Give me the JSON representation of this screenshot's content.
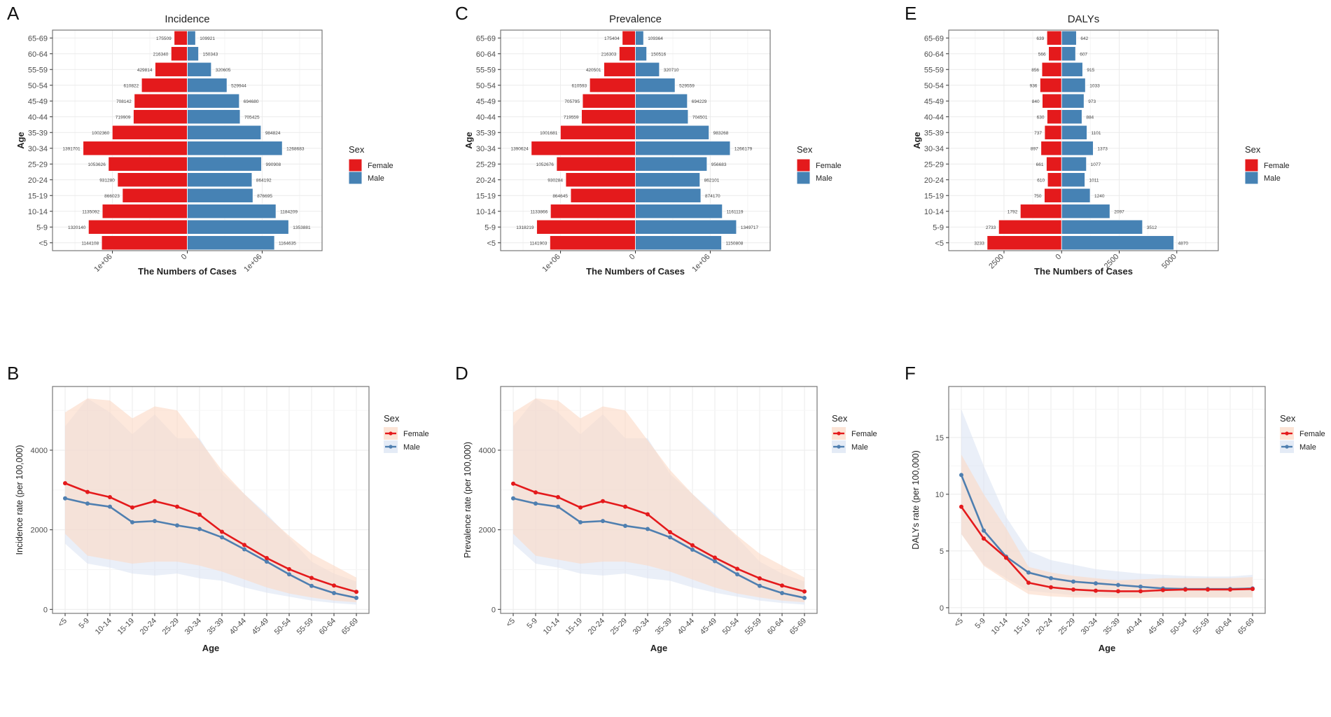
{
  "chart_data": [
    {
      "id": "A",
      "panel_letter": "A",
      "type": "bar",
      "orientation": "horizontal-pyramid",
      "title": "Incidence",
      "xlabel": "The Numbers of Cases",
      "ylabel": "Age",
      "categories": [
        "<5",
        "5-9",
        "10-14",
        "15-19",
        "20-24",
        "25-29",
        "30-34",
        "35-39",
        "40-44",
        "45-49",
        "50-54",
        "55-59",
        "60-64",
        "65-69"
      ],
      "series": [
        {
          "name": "Female",
          "color": "#E41A1C",
          "values": [
            1144108,
            1320140,
            1135092,
            866023,
            931280,
            1053626,
            1391701,
            1002360,
            719909,
            708142,
            610822,
            429814,
            216340,
            175509
          ]
        },
        {
          "name": "Male",
          "color": "#4682B4",
          "values": [
            1164635,
            1353881,
            1184209,
            876695,
            864192,
            990908,
            1268683,
            984824,
            705425,
            694680,
            529944,
            320605,
            150343,
            109921
          ]
        }
      ],
      "x_ticks": [
        {
          "value": -1000000,
          "label": "1e+06"
        },
        {
          "value": 0,
          "label": "0"
        },
        {
          "value": 1000000,
          "label": "1e+06"
        }
      ],
      "xlim": [
        -1800000,
        1800000
      ],
      "grid": true,
      "legend": {
        "title": "Sex",
        "position": "right",
        "entries": [
          "Female",
          "Male"
        ]
      }
    },
    {
      "id": "C",
      "panel_letter": "C",
      "type": "bar",
      "orientation": "horizontal-pyramid",
      "title": "Prevalence",
      "xlabel": "The Numbers of Cases",
      "ylabel": "Age",
      "categories": [
        "<5",
        "5-9",
        "10-14",
        "15-19",
        "20-24",
        "25-29",
        "30-34",
        "35-39",
        "40-44",
        "45-49",
        "50-54",
        "55-59",
        "60-64",
        "65-69"
      ],
      "series": [
        {
          "name": "Female",
          "color": "#E41A1C",
          "values": [
            1141903,
            1318219,
            1133866,
            864645,
            930284,
            1052676,
            1390624,
            1001681,
            719559,
            705795,
            610593,
            420501,
            216303,
            175404
          ]
        },
        {
          "name": "Male",
          "color": "#4682B4",
          "values": [
            1150808,
            1349717,
            1161119,
            874170,
            862101,
            956683,
            1266179,
            983268,
            704501,
            694229,
            529559,
            320710,
            150516,
            109364
          ]
        }
      ],
      "x_ticks": [
        {
          "value": -1000000,
          "label": "1e+06"
        },
        {
          "value": 0,
          "label": "0"
        },
        {
          "value": 1000000,
          "label": "1e+06"
        }
      ],
      "xlim": [
        -1800000,
        1800000
      ],
      "grid": true,
      "legend": {
        "title": "Sex",
        "position": "right",
        "entries": [
          "Female",
          "Male"
        ]
      }
    },
    {
      "id": "E",
      "panel_letter": "E",
      "type": "bar",
      "orientation": "horizontal-pyramid",
      "title": "DALYs",
      "xlabel": "The Numbers of Cases",
      "ylabel": "Age",
      "categories": [
        "<5",
        "5-9",
        "10-14",
        "15-19",
        "20-24",
        "25-29",
        "30-34",
        "35-39",
        "40-44",
        "45-49",
        "50-54",
        "55-59",
        "60-64",
        "65-69"
      ],
      "series": [
        {
          "name": "Female",
          "color": "#E41A1C",
          "values": [
            3233,
            2733,
            1792,
            750,
            610,
            661,
            897,
            737,
            630,
            840,
            936,
            856,
            566,
            639
          ]
        },
        {
          "name": "Male",
          "color": "#4682B4",
          "values": [
            4870,
            3512,
            2097,
            1240,
            1011,
            1077,
            1373,
            1101,
            884,
            973,
            1033,
            915,
            607,
            642
          ]
        }
      ],
      "x_ticks": [
        {
          "value": -2500,
          "label": "2500"
        },
        {
          "value": 0,
          "label": "0"
        },
        {
          "value": 2500,
          "label": "2500"
        },
        {
          "value": 5000,
          "label": "5000"
        }
      ],
      "xlim": [
        -4900,
        6800
      ],
      "grid": true,
      "legend": {
        "title": "Sex",
        "position": "right",
        "entries": [
          "Female",
          "Male"
        ]
      }
    },
    {
      "id": "B",
      "panel_letter": "B",
      "type": "line",
      "title": "",
      "xlabel": "Age",
      "ylabel": "Incidence rate (per 100,000)",
      "categories": [
        "<5",
        "5-9",
        "10-14",
        "15-19",
        "20-24",
        "25-29",
        "30-34",
        "35-39",
        "40-44",
        "45-49",
        "50-54",
        "55-59",
        "60-64",
        "65-69"
      ],
      "series": [
        {
          "name": "Female",
          "color": "#E41A1C",
          "band_color": "#FBD9C4",
          "values": [
            3170,
            2950,
            2820,
            2560,
            2720,
            2580,
            2380,
            1950,
            1620,
            1290,
            1010,
            790,
            600,
            440
          ],
          "upper": [
            4950,
            5300,
            5250,
            4800,
            5100,
            5000,
            4250,
            3500,
            2900,
            2350,
            1850,
            1400,
            1100,
            800
          ],
          "lower": [
            1900,
            1350,
            1250,
            1150,
            1200,
            1200,
            1100,
            950,
            750,
            550,
            400,
            300,
            220,
            180
          ]
        },
        {
          "name": "Male",
          "color": "#4F7FB0",
          "band_color": "#D8E2F2",
          "values": [
            2790,
            2660,
            2580,
            2190,
            2220,
            2110,
            2020,
            1810,
            1510,
            1200,
            880,
            590,
            410,
            290
          ],
          "upper": [
            4600,
            5300,
            4950,
            4400,
            4900,
            4300,
            4300,
            3400,
            2900,
            2400,
            1800,
            1200,
            900,
            700
          ],
          "lower": [
            1650,
            1150,
            1050,
            900,
            850,
            900,
            780,
            720,
            550,
            420,
            320,
            220,
            160,
            120
          ]
        }
      ],
      "y_ticks": [
        0,
        2000,
        4000
      ],
      "ylim": [
        -100,
        5600
      ],
      "grid": true,
      "legend": {
        "title": "Sex",
        "position": "right",
        "entries": [
          "Female",
          "Male"
        ]
      }
    },
    {
      "id": "D",
      "panel_letter": "D",
      "type": "line",
      "title": "",
      "xlabel": "Age",
      "ylabel": "Prevalence rate (per 100,000)",
      "categories": [
        "<5",
        "5-9",
        "10-14",
        "15-19",
        "20-24",
        "25-29",
        "30-34",
        "35-39",
        "40-44",
        "45-49",
        "50-54",
        "55-59",
        "60-64",
        "65-69"
      ],
      "series": [
        {
          "name": "Female",
          "color": "#E41A1C",
          "band_color": "#FBD9C4",
          "values": [
            3160,
            2940,
            2820,
            2560,
            2720,
            2580,
            2390,
            1940,
            1610,
            1300,
            1020,
            780,
            600,
            450
          ],
          "upper": [
            4950,
            5300,
            5250,
            4800,
            5100,
            5000,
            4250,
            3500,
            2900,
            2350,
            1850,
            1400,
            1100,
            800
          ],
          "lower": [
            1900,
            1350,
            1250,
            1150,
            1200,
            1200,
            1100,
            950,
            750,
            550,
            400,
            300,
            220,
            180
          ]
        },
        {
          "name": "Male",
          "color": "#4F7FB0",
          "band_color": "#D8E2F2",
          "values": [
            2790,
            2660,
            2580,
            2190,
            2220,
            2100,
            2020,
            1810,
            1500,
            1210,
            880,
            590,
            410,
            290
          ],
          "upper": [
            4600,
            5300,
            4950,
            4400,
            4900,
            4300,
            4300,
            3400,
            2900,
            2400,
            1800,
            1200,
            900,
            700
          ],
          "lower": [
            1650,
            1150,
            1050,
            900,
            850,
            900,
            780,
            720,
            550,
            420,
            320,
            220,
            160,
            120
          ]
        }
      ],
      "y_ticks": [
        0,
        2000,
        4000
      ],
      "ylim": [
        -100,
        5600
      ],
      "grid": true,
      "legend": {
        "title": "Sex",
        "position": "right",
        "entries": [
          "Female",
          "Male"
        ]
      }
    },
    {
      "id": "F",
      "panel_letter": "F",
      "type": "line",
      "title": "",
      "xlabel": "Age",
      "ylabel": "DALYs rate (per 100,000)",
      "categories": [
        "<5",
        "5-9",
        "10-14",
        "15-19",
        "20-24",
        "25-29",
        "30-34",
        "35-39",
        "40-44",
        "45-49",
        "50-54",
        "55-59",
        "60-64",
        "65-69"
      ],
      "series": [
        {
          "name": "Female",
          "color": "#E41A1C",
          "band_color": "#FBD9C4",
          "values": [
            8.9,
            6.1,
            4.4,
            2.2,
            1.8,
            1.6,
            1.5,
            1.45,
            1.45,
            1.55,
            1.6,
            1.6,
            1.6,
            1.65
          ],
          "upper": [
            13.5,
            10.0,
            7.0,
            3.6,
            3.1,
            2.8,
            2.6,
            2.4,
            2.5,
            2.6,
            2.6,
            2.6,
            2.6,
            2.7
          ],
          "lower": [
            6.5,
            3.7,
            2.4,
            1.2,
            1.0,
            0.9,
            0.9,
            0.85,
            0.85,
            0.9,
            0.9,
            0.9,
            0.9,
            0.9
          ]
        },
        {
          "name": "Male",
          "color": "#4F7FB0",
          "band_color": "#D8E2F2",
          "values": [
            11.7,
            6.8,
            4.5,
            3.1,
            2.6,
            2.3,
            2.15,
            2.0,
            1.85,
            1.7,
            1.65,
            1.65,
            1.65,
            1.7
          ],
          "upper": [
            17.5,
            12.5,
            8.0,
            5.0,
            4.2,
            3.8,
            3.4,
            3.2,
            3.0,
            2.9,
            2.8,
            2.75,
            2.75,
            2.9
          ],
          "lower": [
            6.5,
            3.8,
            2.6,
            1.5,
            1.3,
            1.1,
            1.05,
            1.0,
            0.95,
            0.9,
            0.9,
            0.9,
            0.9,
            0.95
          ]
        }
      ],
      "y_ticks": [
        0,
        5,
        10,
        15
      ],
      "ylim": [
        -0.5,
        19.5
      ],
      "grid": true,
      "legend": {
        "title": "Sex",
        "position": "right",
        "entries": [
          "Female",
          "Male"
        ]
      }
    }
  ]
}
